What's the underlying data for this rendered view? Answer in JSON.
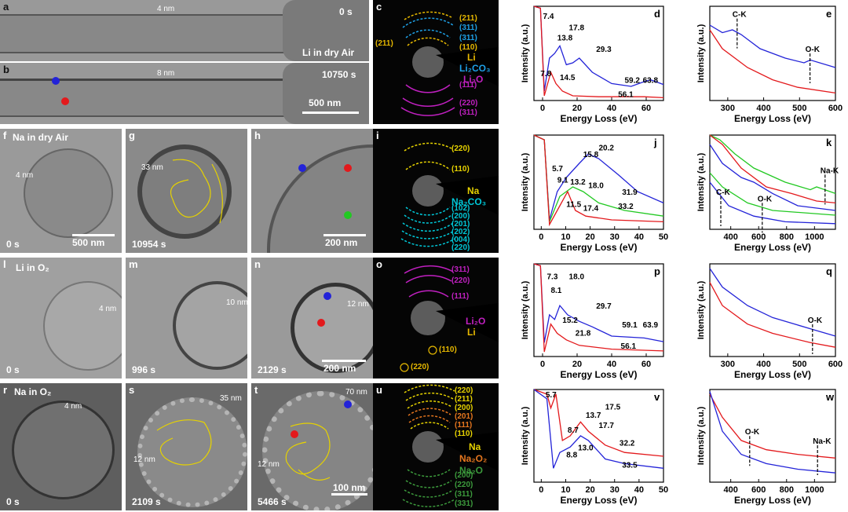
{
  "labels": {
    "a": "a",
    "b": "b",
    "c": "c",
    "d": "d",
    "e": "e",
    "f": "f",
    "g": "g",
    "h": "h",
    "i": "i",
    "j": "j",
    "k": "k",
    "l": "l",
    "m": "m",
    "n": "n",
    "o": "o",
    "p": "p",
    "q": "q",
    "r": "r",
    "s": "s",
    "t": "t",
    "u": "u",
    "v": "v",
    "w": "w"
  },
  "row1": {
    "a_thick": "4 nm",
    "a_time": "0 s",
    "a_title": "Li in dry Air",
    "b_thick": "8 nm",
    "b_time": "10750 s",
    "b_scale": "500 nm",
    "c_rings": [
      "(211)",
      "(311)",
      "(110)"
    ],
    "c_left": "(211)",
    "c_rings_low": [
      "(111)",
      "(220)",
      "(311)"
    ],
    "c_phase1": "Li",
    "c_phase2": "Li₂CO₃",
    "c_phase3": "Li₂O"
  },
  "row2": {
    "f_title": "Na in dry Air",
    "f_thick": "4 nm",
    "f_time": "0 s",
    "f_scale": "500 nm",
    "g_thick": "33 nm",
    "g_time": "10954 s",
    "h_scale": "200 nm",
    "i_rings": [
      "(220)",
      "(110)"
    ],
    "i_rings_low": [
      "(102)",
      "(200)",
      "(201)",
      "(202)",
      "(004)",
      "(220)"
    ],
    "i_phase1": "Na",
    "i_phase2": "Na₂CO₃"
  },
  "row3": {
    "l_title": "Li in O₂",
    "l_thick": "4 nm",
    "l_time": "0 s",
    "m_thick": "10 nm",
    "m_time": "996 s",
    "n_thick": "12 nm",
    "n_time": "2129 s",
    "n_scale": "200 nm",
    "o_rings": [
      "(311)",
      "(220)",
      "(111)"
    ],
    "o_spot1": "(110)",
    "o_spot2": "(220)",
    "o_phase1": "Li₂O",
    "o_phase2": "Li"
  },
  "row4": {
    "r_title": "Na in O₂",
    "r_thick": "4 nm",
    "r_time": "0 s",
    "s_thick": "35 nm",
    "s_thick2": "12 nm",
    "s_time": "2109 s",
    "t_thick": "70 nm",
    "t_thick2": "12 nm",
    "t_time": "5466 s",
    "t_scale": "100 nm",
    "u_rings": [
      "(220)",
      "(211)",
      "(200)",
      "(201)",
      "(111)",
      "(110)"
    ],
    "u_rings_low": [
      "(200)",
      "(220)",
      "(311)",
      "(331)"
    ],
    "u_phase1": "Na",
    "u_phase2": "Na₂O₂",
    "u_phase3": "Na₂O"
  },
  "colors": {
    "blue": "#2323d8",
    "red": "#e3191c",
    "green": "#22c922",
    "li": "#e6b800",
    "li2co3": "#1ea0e6",
    "li2o": "#c020c0",
    "na": "#e6d200",
    "na2co3": "#00c8d8",
    "na2o2": "#e6761e",
    "na2o": "#3c9a3c"
  },
  "chart_data": [
    {
      "id": "d",
      "type": "line",
      "xlabel": "Energy Loss (eV)",
      "ylabel": "Intensity (a.u.)",
      "xticks": [
        "0",
        "20",
        "40",
        "60"
      ],
      "xlim": [
        -5,
        70
      ],
      "annotations": [
        "7.4",
        "13.8",
        "17.8",
        "29.3",
        "7.8",
        "14.5",
        "59.2",
        "63.8",
        "56.1"
      ]
    },
    {
      "id": "e",
      "type": "line",
      "xlabel": "Energy Loss (eV)",
      "ylabel": "Intensity (a.u.)",
      "xticks": [
        "300",
        "400",
        "500",
        "600"
      ],
      "xlim": [
        250,
        600
      ],
      "annotations": [
        "C-K",
        "O-K"
      ]
    },
    {
      "id": "j",
      "type": "line",
      "xlabel": "Energy Loss (eV)",
      "ylabel": "Intensity (a.u.)",
      "xticks": [
        "0",
        "10",
        "20",
        "30",
        "40",
        "50"
      ],
      "xlim": [
        -3,
        50
      ],
      "annotations": [
        "5.7",
        "9.1",
        "13.2",
        "15.8",
        "20.2",
        "18.0",
        "31.9",
        "11.5",
        "17.4",
        "33.2"
      ]
    },
    {
      "id": "k",
      "type": "line",
      "xlabel": "Energy Loss (eV)",
      "ylabel": "Intensity (a.u.)",
      "xticks": [
        "400",
        "600",
        "800",
        "1000"
      ],
      "xlim": [
        250,
        1150
      ],
      "annotations": [
        "C-K",
        "O-K",
        "Na-K"
      ]
    },
    {
      "id": "p",
      "type": "line",
      "xlabel": "Energy Loss (eV)",
      "ylabel": "Intensity (a.u.)",
      "xticks": [
        "0",
        "20",
        "40",
        "60"
      ],
      "xlim": [
        -5,
        70
      ],
      "annotations": [
        "7.3",
        "8.1",
        "18.0",
        "29.7",
        "15.2",
        "21.8",
        "59.1",
        "63.9",
        "56.1"
      ]
    },
    {
      "id": "q",
      "type": "line",
      "xlabel": "Energy Loss (eV)",
      "ylabel": "Intensity (a.u.)",
      "xticks": [
        "300",
        "400",
        "500",
        "600"
      ],
      "xlim": [
        250,
        600
      ],
      "annotations": [
        "O-K"
      ]
    },
    {
      "id": "v",
      "type": "line",
      "xlabel": "Energy Loss (eV)",
      "ylabel": "Intensity (a.u.)",
      "xticks": [
        "0",
        "10",
        "20",
        "30",
        "40",
        "50"
      ],
      "xlim": [
        -3,
        50
      ],
      "annotations": [
        "5.7",
        "13.7",
        "17.5",
        "8.7",
        "17.7",
        "13.0",
        "8.8",
        "32.2",
        "33.5"
      ]
    },
    {
      "id": "w",
      "type": "line",
      "xlabel": "Energy Loss (eV)",
      "ylabel": "Intensity (a.u.)",
      "xticks": [
        "400",
        "600",
        "800",
        "1000"
      ],
      "xlim": [
        250,
        1150
      ],
      "annotations": [
        "O-K",
        "Na-K"
      ]
    }
  ]
}
